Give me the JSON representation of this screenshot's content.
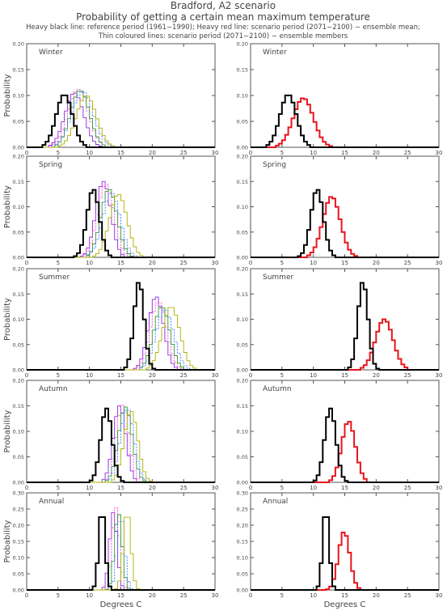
{
  "header": {
    "title": "Bradford, A2 scenario",
    "subtitle": "Probability of getting a certain mean maximum temperature",
    "legend_line1": "Heavy black line: reference period (1961−1990); Heavy red line: scenario period (2071−2100) − ensemble mean;",
    "legend_line2": "Thin coloured lines: scenario period (2071−2100) − ensemble members"
  },
  "colors": {
    "reference": "#000000",
    "mean": "#e8141c",
    "members": [
      "#8a2be2",
      "#ff3fd4",
      "#2f9c2f",
      "#4a78ff",
      "#b0b000",
      "#33cc33",
      "#b02040",
      "#222222",
      "#21c4c4",
      "#ff8c00",
      "#6a5acd"
    ]
  },
  "chart_data": [
    {
      "type": "line",
      "title": "Winter",
      "panel": "ensemble members",
      "ylabel": "Probability",
      "xlabel": "",
      "xlim": [
        0,
        30
      ],
      "ylim": [
        0,
        0.2
      ],
      "x_ticks": [
        0,
        5,
        10,
        15,
        20,
        25,
        30
      ],
      "y_ticks": [
        "0.00",
        "0.05",
        "0.10",
        "0.15",
        "0.20"
      ],
      "reference": {
        "mu": 6.0,
        "sigma": 1.3,
        "peak": 0.102
      },
      "members": [
        {
          "mu": 7.6,
          "sigma": 1.5,
          "peak": 0.105
        },
        {
          "mu": 8.2,
          "sigma": 1.6,
          "peak": 0.112
        },
        {
          "mu": 8.5,
          "sigma": 1.5,
          "peak": 0.11
        },
        {
          "mu": 8.9,
          "sigma": 1.7,
          "peak": 0.108
        },
        {
          "mu": 9.5,
          "sigma": 1.6,
          "peak": 0.1
        }
      ]
    },
    {
      "type": "line",
      "title": "Winter",
      "panel": "ensemble mean",
      "ylabel": "",
      "xlabel": "",
      "xlim": [
        0,
        30
      ],
      "ylim": [
        0,
        0.2
      ],
      "x_ticks": [
        0,
        5,
        10,
        15,
        20,
        25,
        30
      ],
      "y_ticks": [
        "0.00",
        "0.05",
        "0.10",
        "0.15",
        "0.20"
      ],
      "reference": {
        "mu": 6.0,
        "sigma": 1.3,
        "peak": 0.102
      },
      "mean": {
        "mu": 8.4,
        "sigma": 1.6,
        "peak": 0.095
      }
    },
    {
      "type": "line",
      "title": "Spring",
      "panel": "ensemble members",
      "ylabel": "Probability",
      "xlabel": "",
      "xlim": [
        0,
        30
      ],
      "ylim": [
        0,
        0.2
      ],
      "x_ticks": [
        0,
        5,
        10,
        15,
        20,
        25,
        30
      ],
      "y_ticks": [
        "0.00",
        "0.05",
        "0.10",
        "0.15",
        "0.20"
      ],
      "reference": {
        "mu": 10.6,
        "sigma": 1.0,
        "peak": 0.135
      },
      "members": [
        {
          "mu": 12.2,
          "sigma": 1.2,
          "peak": 0.15
        },
        {
          "mu": 12.6,
          "sigma": 1.3,
          "peak": 0.145
        },
        {
          "mu": 13.1,
          "sigma": 1.3,
          "peak": 0.135
        },
        {
          "mu": 13.5,
          "sigma": 1.4,
          "peak": 0.128
        },
        {
          "mu": 14.6,
          "sigma": 1.4,
          "peak": 0.125
        }
      ]
    },
    {
      "type": "line",
      "title": "Spring",
      "panel": "ensemble mean",
      "ylabel": "",
      "xlabel": "",
      "xlim": [
        0,
        30
      ],
      "ylim": [
        0,
        0.2
      ],
      "x_ticks": [
        0,
        5,
        10,
        15,
        20,
        25,
        30
      ],
      "y_ticks": [
        "0.00",
        "0.05",
        "0.10",
        "0.15",
        "0.20"
      ],
      "reference": {
        "mu": 10.6,
        "sigma": 1.0,
        "peak": 0.135
      },
      "mean": {
        "mu": 12.9,
        "sigma": 1.4,
        "peak": 0.12
      }
    },
    {
      "type": "line",
      "title": "Summer",
      "panel": "ensemble members",
      "ylabel": "Probability",
      "xlabel": "",
      "xlim": [
        0,
        30
      ],
      "ylim": [
        0,
        0.2
      ],
      "x_ticks": [
        0,
        5,
        10,
        15,
        20,
        25,
        30
      ],
      "y_ticks": [
        "0.00",
        "0.05",
        "0.10",
        "0.15",
        "0.20"
      ],
      "reference": {
        "mu": 17.9,
        "sigma": 0.8,
        "peak": 0.175
      },
      "members": [
        {
          "mu": 20.6,
          "sigma": 1.2,
          "peak": 0.145
        },
        {
          "mu": 21.0,
          "sigma": 1.3,
          "peak": 0.135
        },
        {
          "mu": 21.5,
          "sigma": 1.3,
          "peak": 0.125
        },
        {
          "mu": 22.0,
          "sigma": 1.4,
          "peak": 0.12
        },
        {
          "mu": 23.0,
          "sigma": 1.4,
          "peak": 0.125
        }
      ]
    },
    {
      "type": "line",
      "title": "Summer",
      "panel": "ensemble mean",
      "ylabel": "",
      "xlabel": "",
      "xlim": [
        0,
        30
      ],
      "ylim": [
        0,
        0.2
      ],
      "x_ticks": [
        0,
        5,
        10,
        15,
        20,
        25,
        30
      ],
      "y_ticks": [
        "0.00",
        "0.05",
        "0.10",
        "0.15",
        "0.20"
      ],
      "reference": {
        "mu": 17.9,
        "sigma": 0.8,
        "peak": 0.175
      },
      "mean": {
        "mu": 21.3,
        "sigma": 1.4,
        "peak": 0.1
      }
    },
    {
      "type": "line",
      "title": "Autumn",
      "panel": "ensemble members",
      "ylabel": "Probability",
      "xlabel": "",
      "xlim": [
        0,
        30
      ],
      "ylim": [
        0,
        0.2
      ],
      "x_ticks": [
        0,
        5,
        10,
        15,
        20,
        25,
        30
      ],
      "y_ticks": [
        "0.00",
        "0.05",
        "0.10",
        "0.15",
        "0.20"
      ],
      "reference": {
        "mu": 12.7,
        "sigma": 0.9,
        "peak": 0.145
      },
      "members": [
        {
          "mu": 14.8,
          "sigma": 1.0,
          "peak": 0.15
        },
        {
          "mu": 15.3,
          "sigma": 1.0,
          "peak": 0.152
        },
        {
          "mu": 15.7,
          "sigma": 1.1,
          "peak": 0.148
        },
        {
          "mu": 16.0,
          "sigma": 1.1,
          "peak": 0.145
        },
        {
          "mu": 16.6,
          "sigma": 1.1,
          "peak": 0.14
        }
      ]
    },
    {
      "type": "line",
      "title": "Autumn",
      "panel": "ensemble mean",
      "ylabel": "",
      "xlabel": "",
      "xlim": [
        0,
        30
      ],
      "ylim": [
        0,
        0.2
      ],
      "x_ticks": [
        0,
        5,
        10,
        15,
        20,
        25,
        30
      ],
      "y_ticks": [
        "0.00",
        "0.05",
        "0.10",
        "0.15",
        "0.20"
      ],
      "reference": {
        "mu": 12.7,
        "sigma": 0.9,
        "peak": 0.145
      },
      "mean": {
        "mu": 15.6,
        "sigma": 1.1,
        "peak": 0.12
      }
    },
    {
      "type": "line",
      "title": "Annual",
      "panel": "ensemble members",
      "ylabel": "Probability",
      "xlabel": "Degrees C",
      "xlim": [
        0,
        30
      ],
      "ylim": [
        0,
        0.3
      ],
      "x_ticks": [
        0,
        5,
        10,
        15,
        20,
        25,
        30
      ],
      "y_ticks": [
        "0.00",
        "0.05",
        "0.10",
        "0.15",
        "0.20",
        "0.25",
        "0.30"
      ],
      "reference": {
        "mu": 12.0,
        "sigma": 0.5,
        "peak": 0.255
      },
      "members": [
        {
          "mu": 13.8,
          "sigma": 0.6,
          "peak": 0.24
        },
        {
          "mu": 14.2,
          "sigma": 0.6,
          "peak": 0.255
        },
        {
          "mu": 14.6,
          "sigma": 0.6,
          "peak": 0.24
        },
        {
          "mu": 15.0,
          "sigma": 0.6,
          "peak": 0.23
        },
        {
          "mu": 16.0,
          "sigma": 0.6,
          "peak": 0.245
        }
      ]
    },
    {
      "type": "line",
      "title": "Annual",
      "panel": "ensemble mean",
      "ylabel": "",
      "xlabel": "Degrees C",
      "xlim": [
        0,
        30
      ],
      "ylim": [
        0,
        0.3
      ],
      "x_ticks": [
        0,
        5,
        10,
        15,
        20,
        25,
        30
      ],
      "y_ticks": [
        "0.00",
        "0.05",
        "0.10",
        "0.15",
        "0.20",
        "0.25",
        "0.30"
      ],
      "reference": {
        "mu": 12.0,
        "sigma": 0.5,
        "peak": 0.255
      },
      "mean": {
        "mu": 14.9,
        "sigma": 0.9,
        "peak": 0.18
      }
    }
  ]
}
